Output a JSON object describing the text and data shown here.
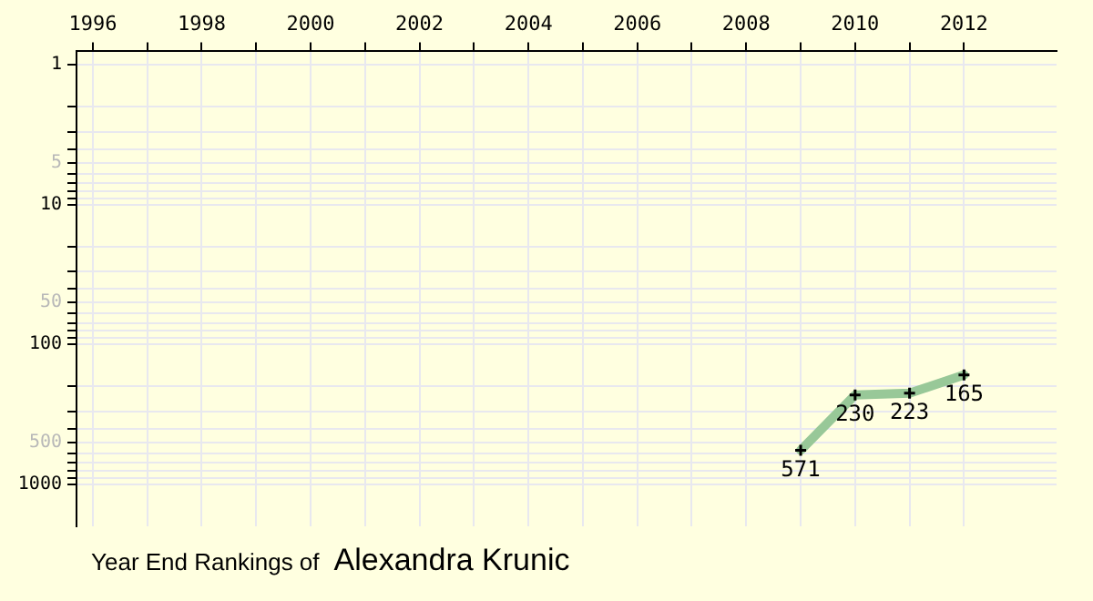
{
  "chart_data": {
    "type": "line",
    "title": "Year End Rankings of",
    "subtitle": "Alexandra Krunic",
    "x": [
      2009,
      2010,
      2011,
      2012
    ],
    "series": [
      {
        "color": "#98c898",
        "values": [
          571,
          230,
          223,
          165
        ]
      }
    ],
    "data_labels": true,
    "marker": "cross",
    "line_style": "solid",
    "grid": true,
    "log": "y",
    "legend": false,
    "xlim": [
      1995.7,
      2013.7
    ],
    "xticks": [
      1996,
      {
        "value": 1997,
        "label": null
      },
      1998,
      {
        "value": 1999,
        "label": null
      },
      2000,
      {
        "value": 2001,
        "label": null
      },
      2002,
      {
        "value": 2003,
        "label": null
      },
      2004,
      {
        "value": 2005,
        "label": null
      },
      2006,
      {
        "value": 2007,
        "label": null
      },
      2008,
      {
        "value": 2009,
        "label": null
      },
      2010,
      {
        "value": 2011,
        "label": null
      },
      2012
    ],
    "ylim": [
      2000,
      0.8
    ],
    "yticks": [
      1,
      {
        "value": 2,
        "label": null
      },
      {
        "value": 3,
        "label": null
      },
      {
        "value": 4,
        "label": null
      },
      5,
      {
        "value": 6,
        "label": null
      },
      {
        "value": 7,
        "label": null
      },
      {
        "value": 8,
        "label": null
      },
      {
        "value": 9,
        "label": null
      },
      10,
      {
        "value": 20,
        "label": null
      },
      {
        "value": 30,
        "label": null
      },
      {
        "value": 40,
        "label": null
      },
      50,
      {
        "value": 60,
        "label": null
      },
      {
        "value": 70,
        "label": null
      },
      {
        "value": 80,
        "label": null
      },
      {
        "value": 90,
        "label": null
      },
      100,
      {
        "value": 200,
        "label": null
      },
      {
        "value": 300,
        "label": null
      },
      {
        "value": 400,
        "label": null
      },
      500,
      {
        "value": 600,
        "label": null
      },
      {
        "value": 700,
        "label": null
      },
      {
        "value": 800,
        "label": null
      },
      {
        "value": 900,
        "label": null
      },
      1000
    ]
  }
}
